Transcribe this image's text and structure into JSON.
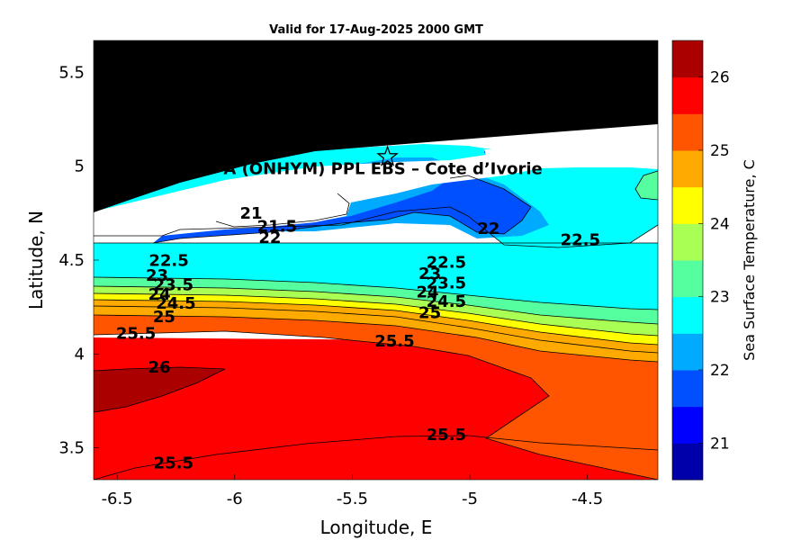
{
  "chart_data": {
    "type": "heatmap",
    "subtype": "filled-contour-map",
    "title": "Valid for 17-Aug-2025 2000 GMT",
    "xlabel": "Longitude, E",
    "ylabel": "Latitude, N",
    "xlim": [
      -6.6,
      -4.2
    ],
    "ylim": [
      3.33,
      5.67
    ],
    "xticks": [
      -6.5,
      -6,
      -5.5,
      -5,
      -4.5
    ],
    "xtick_labels": [
      "-6.5",
      "-6",
      "-5.5",
      "-5",
      "-4.5"
    ],
    "yticks": [
      3.5,
      4,
      4.5,
      5,
      5.5
    ],
    "ytick_labels": [
      "3.5",
      "4",
      "4.5",
      "5",
      "5.5"
    ],
    "colorbar": {
      "label": "Sea Surface Temperature, C",
      "range": [
        20.5,
        26.5
      ],
      "ticks": [
        21,
        22,
        23,
        24,
        25,
        26
      ],
      "tick_labels": [
        "21",
        "22",
        "23",
        "24",
        "25",
        "26"
      ],
      "levels": [
        20.5,
        21,
        21.5,
        22,
        22.5,
        23,
        23.5,
        24,
        24.5,
        25,
        25.5,
        26,
        26.5
      ],
      "colors": [
        "#0000aa",
        "#0000ff",
        "#0050ff",
        "#00aaff",
        "#00ffff",
        "#55ff9f",
        "#aaff55",
        "#ffff00",
        "#ffaa00",
        "#ff5500",
        "#ff0000",
        "#aa0000"
      ]
    },
    "land_color": "#000000",
    "site": {
      "label": "A (ONHYM) PPL EBS  – Cote d’Ivorie",
      "lon": -5.35,
      "lat": 5.05,
      "marker": "star"
    },
    "temperature_rows": [
      {
        "lat": 4.58,
        "lon": [
          -6.6,
          -6.2,
          -5.9,
          -5.6,
          -5.3,
          -5.0,
          -4.7,
          -4.4,
          -4.2
        ],
        "sst": [
          22.2,
          22.0,
          21.8,
          21.5,
          21.9,
          22.0,
          22.3,
          22.7,
          22.9
        ]
      },
      {
        "lat": 4.5,
        "lon": [
          -6.6,
          -6.2,
          -5.9,
          -5.6,
          -5.3,
          -5.0,
          -4.7,
          -4.4,
          -4.2
        ],
        "sst": [
          22.4,
          22.5,
          22.5,
          22.4,
          22.4,
          22.5,
          22.6,
          22.8,
          22.9
        ]
      },
      {
        "lat": 4.4,
        "lon": [
          -6.6,
          -6.2,
          -5.9,
          -5.6,
          -5.3,
          -5.0,
          -4.7,
          -4.4,
          -4.2
        ],
        "sst": [
          22.8,
          22.8,
          22.7,
          22.6,
          22.6,
          22.7,
          22.8,
          22.9,
          23.0
        ]
      },
      {
        "lat": 4.3,
        "lon": [
          -6.6,
          -6.2,
          -5.9,
          -5.6,
          -5.3,
          -5.0,
          -4.7,
          -4.4,
          -4.2
        ],
        "sst": [
          23.8,
          23.6,
          23.4,
          23.2,
          23.2,
          23.3,
          23.4,
          23.5,
          23.6
        ]
      },
      {
        "lat": 4.2,
        "lon": [
          -6.6,
          -6.2,
          -5.9,
          -5.6,
          -5.3,
          -5.0,
          -4.7,
          -4.4,
          -4.2
        ],
        "sst": [
          24.6,
          24.5,
          24.4,
          24.3,
          24.2,
          24.2,
          24.1,
          24.0,
          24.0
        ]
      },
      {
        "lat": 4.1,
        "lon": [
          -6.6,
          -6.2,
          -5.9,
          -5.6,
          -5.3,
          -5.0,
          -4.7,
          -4.4,
          -4.2
        ],
        "sst": [
          25.4,
          25.3,
          25.2,
          25.1,
          25.0,
          24.9,
          24.8,
          24.6,
          24.5
        ]
      },
      {
        "lat": 4.0,
        "lon": [
          -6.6,
          -6.2,
          -5.9,
          -5.6,
          -5.3,
          -5.0,
          -4.7,
          -4.4,
          -4.2
        ],
        "sst": [
          25.7,
          25.7,
          25.6,
          25.5,
          25.4,
          25.3,
          25.0,
          24.9,
          24.8
        ]
      },
      {
        "lat": 3.8,
        "lon": [
          -6.6,
          -6.2,
          -5.9,
          -5.6,
          -5.3,
          -5.0,
          -4.7,
          -4.4,
          -4.2
        ],
        "sst": [
          26.1,
          25.9,
          25.8,
          25.7,
          25.6,
          25.5,
          25.3,
          25.1,
          25.0
        ]
      },
      {
        "lat": 3.6,
        "lon": [
          -6.6,
          -6.2,
          -5.9,
          -5.6,
          -5.3,
          -5.0,
          -4.7,
          -4.4,
          -4.2
        ],
        "sst": [
          25.7,
          25.6,
          25.6,
          25.5,
          25.5,
          25.4,
          25.2,
          25.1,
          25.0
        ]
      },
      {
        "lat": 3.4,
        "lon": [
          -6.6,
          -6.2,
          -5.9,
          -5.6,
          -5.3,
          -5.0,
          -4.7,
          -4.4,
          -4.2
        ],
        "sst": [
          25.4,
          25.5,
          25.5,
          25.5,
          25.5,
          25.4,
          25.3,
          25.2,
          25.1
        ]
      }
    ],
    "contour_labels": [
      {
        "text": "21",
        "lon": -5.93,
        "lat": 4.72
      },
      {
        "text": "21.5",
        "lon": -5.82,
        "lat": 4.65
      },
      {
        "text": "22",
        "lon": -5.85,
        "lat": 4.59
      },
      {
        "text": "22",
        "lon": -4.92,
        "lat": 4.64
      },
      {
        "text": "22.5",
        "lon": -4.53,
        "lat": 4.58
      },
      {
        "text": "22.5",
        "lon": -6.28,
        "lat": 4.47
      },
      {
        "text": "23",
        "lon": -6.33,
        "lat": 4.39
      },
      {
        "text": "23.5",
        "lon": -6.26,
        "lat": 4.34
      },
      {
        "text": "24",
        "lon": -6.32,
        "lat": 4.29
      },
      {
        "text": "24.5",
        "lon": -6.25,
        "lat": 4.24
      },
      {
        "text": "25",
        "lon": -6.3,
        "lat": 4.17
      },
      {
        "text": "25.5",
        "lon": -6.42,
        "lat": 4.08
      },
      {
        "text": "22.5",
        "lon": -5.1,
        "lat": 4.46
      },
      {
        "text": "23",
        "lon": -5.17,
        "lat": 4.4
      },
      {
        "text": "23.5",
        "lon": -5.1,
        "lat": 4.35
      },
      {
        "text": "24",
        "lon": -5.18,
        "lat": 4.3
      },
      {
        "text": "24.5",
        "lon": -5.1,
        "lat": 4.25
      },
      {
        "text": "25",
        "lon": -5.17,
        "lat": 4.19
      },
      {
        "text": "25.5",
        "lon": -5.32,
        "lat": 4.04
      },
      {
        "text": "26",
        "lon": -6.32,
        "lat": 3.9
      },
      {
        "text": "25.5",
        "lon": -5.1,
        "lat": 3.54
      },
      {
        "text": "25.5",
        "lon": -6.26,
        "lat": 3.39
      }
    ]
  }
}
